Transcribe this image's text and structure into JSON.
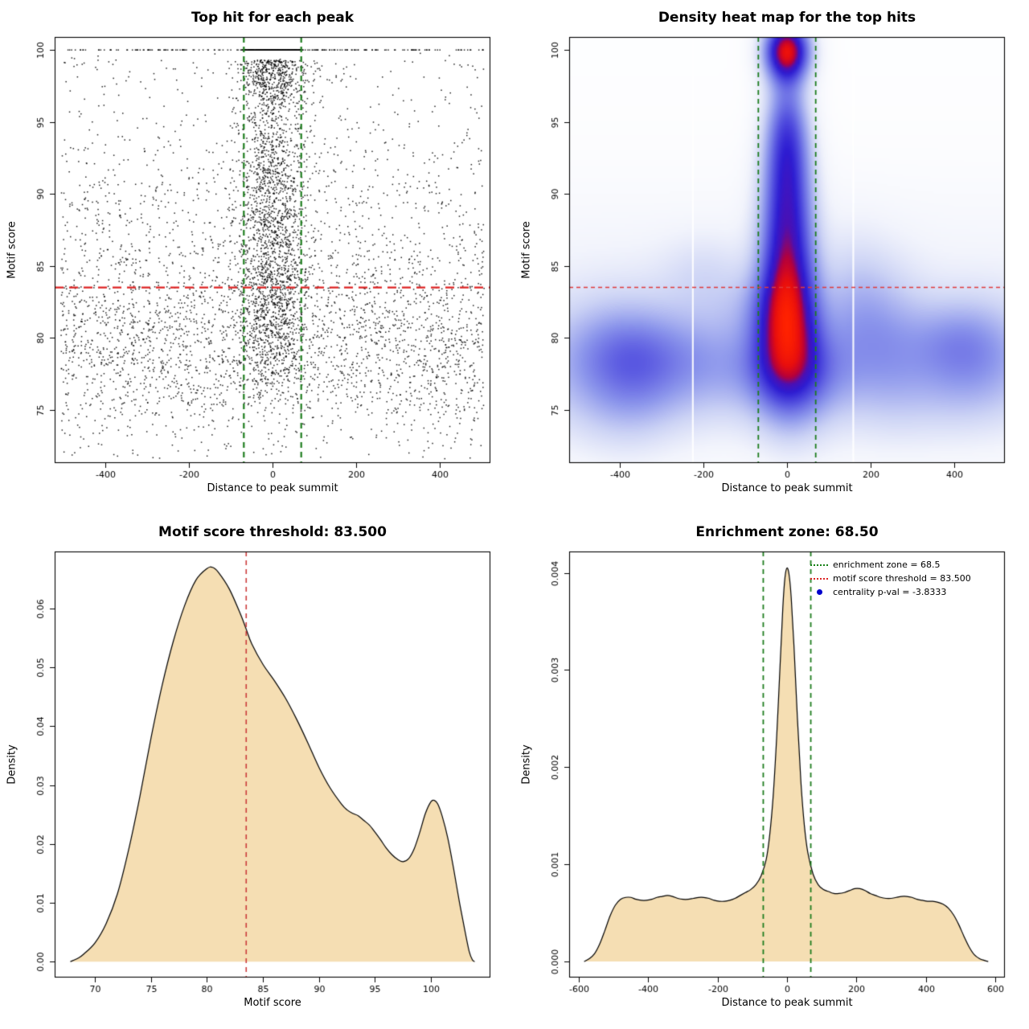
{
  "figure": {
    "background": "#ffffff"
  },
  "chart_data": [
    {
      "type": "scatter",
      "title": "Top hit for each peak",
      "xlabel": "Distance to peak summit",
      "ylabel": "Motif score",
      "xlim": [
        -520,
        520
      ],
      "ylim": [
        71.3,
        100.9
      ],
      "xticks": [
        -400,
        -200,
        0,
        200,
        400
      ],
      "yticks": [
        75,
        80,
        85,
        90,
        95,
        100
      ],
      "point_color": "#000000",
      "zone_lines": {
        "x": [
          -68.5,
          68.5
        ],
        "color": "#1e7d1e",
        "width": 2.2,
        "dash": [
          7,
          5
        ]
      },
      "threshold_line": {
        "y": 83.5,
        "color": "#dd2222",
        "width": 2.2,
        "dash": [
          11,
          7
        ]
      },
      "model": {
        "seed": 42,
        "y_min": 71.6,
        "y_max": 100,
        "background": {
          "n": 3600,
          "x_range": [
            -505,
            505
          ],
          "mix": [
            {
              "p": 0.55,
              "mu": 79,
              "sd": 3.2
            },
            {
              "p": 0.3,
              "mu": 84.5,
              "sd": 4.5
            },
            {
              "p": 0.12,
              "mu": 92,
              "sd": 4.0
            },
            {
              "p": 0.03,
              "near100": true,
              "sd": 1.5
            }
          ]
        },
        "central": {
          "n": 2600,
          "x_sd": 42,
          "mix": [
            {
              "p": 0.3,
              "mu": 82,
              "sd": 3.2
            },
            {
              "p": 0.3,
              "mu": 88,
              "sd": 3.5
            },
            {
              "p": 0.12,
              "mu": 93,
              "sd": 2.5
            },
            {
              "p": 0.28,
              "near100": true,
              "sd": 2.2
            }
          ]
        },
        "top_row_zone": {
          "n": 240,
          "x_range": [
            -68,
            68
          ]
        },
        "top_row_all": {
          "n": 110,
          "x_range": [
            -505,
            505
          ]
        }
      }
    },
    {
      "type": "heatmap",
      "title": "Density heat map for the top hits",
      "xlabel": "Distance to peak summit",
      "ylabel": "Motif score",
      "xlim": [
        -520,
        520
      ],
      "ylim": [
        71.3,
        100.9
      ],
      "xticks": [
        -400,
        -200,
        0,
        200,
        400
      ],
      "yticks": [
        75,
        80,
        85,
        90,
        95,
        100
      ],
      "zone_lines": {
        "x": [
          -68.5,
          68.5
        ],
        "color": "#1e7d1e",
        "width": 1.8,
        "dash": [
          6,
          5
        ]
      },
      "threshold_line": {
        "y": 83.5,
        "color": "#e03b3b",
        "width": 1.5,
        "dash": [
          5,
          4
        ]
      },
      "artifact_lines_x": [
        -225,
        158
      ],
      "colormap": [
        [
          0.0,
          "#ffffff"
        ],
        [
          0.06,
          "#f2f4fc"
        ],
        [
          0.16,
          "#ccd3f5"
        ],
        [
          0.3,
          "#8d97ec"
        ],
        [
          0.46,
          "#5553e0"
        ],
        [
          0.6,
          "#2d1cd2"
        ],
        [
          0.7,
          "#4a10b5"
        ],
        [
          0.78,
          "#b4003c"
        ],
        [
          0.88,
          "#e80e0e"
        ],
        [
          1.0,
          "#ff2200"
        ]
      ],
      "model": {
        "seed": 11,
        "column": {
          "sd_x_base": 36,
          "sd_x_slope": 0.75,
          "ref_y": 96,
          "components": [
            {
              "mu": 81.5,
              "sd": 3.8,
              "a": 1.2
            },
            {
              "mu": 89,
              "sd": 3.8,
              "a": 0.85
            },
            {
              "mu": 94.5,
              "sd": 3.0,
              "a": 0.6
            },
            {
              "mu": 100,
              "sd": 1.4,
              "a": 1.45
            }
          ]
        },
        "band": [
          {
            "mu": 77.5,
            "sd": 3.4,
            "a": 0.2
          },
          {
            "mu": 84,
            "sd": 5.0,
            "a": 0.08
          }
        ],
        "floor": 0.013,
        "blobs": {
          "n": 16,
          "y_mu": 78,
          "amp": [
            0.08,
            0.22
          ],
          "sx": [
            45,
            115
          ],
          "sy": [
            1.6,
            4.2
          ]
        }
      }
    },
    {
      "type": "area",
      "title": "Motif score threshold: 83.500",
      "xlabel": "Motif score",
      "ylabel": "Density",
      "xlim": [
        66.4,
        105.3
      ],
      "ylim": [
        -0.0027,
        0.0697
      ],
      "xticks": [
        70,
        75,
        80,
        85,
        90,
        95,
        100
      ],
      "yticks": [
        0,
        0.01,
        0.02,
        0.03,
        0.04,
        0.05,
        0.06
      ],
      "ytick_labels": [
        "0.00",
        "0.01",
        "0.02",
        "0.03",
        "0.04",
        "0.05",
        "0.06"
      ],
      "fill": "#f5deb3",
      "stroke": "#000000",
      "vlines": [
        {
          "x": 83.5,
          "color": "#cc3b3b",
          "width": 1.6,
          "dash": [
            6,
            5
          ]
        }
      ],
      "x": [
        67.8,
        68.5,
        69,
        70,
        71,
        72,
        73,
        74,
        75,
        76,
        77,
        78,
        79,
        80,
        80.5,
        81,
        82,
        83,
        83.5,
        84,
        85,
        86,
        87,
        88,
        89,
        90,
        91,
        92,
        92.5,
        93,
        93.5,
        94,
        94.5,
        95,
        95.5,
        96,
        96.5,
        97,
        97.5,
        98,
        98.5,
        99,
        99.5,
        100,
        100.3,
        100.6,
        101,
        101.5,
        102,
        102.5,
        103,
        103.4,
        103.7,
        103.9
      ],
      "y": [
        0.0,
        0.0006,
        0.0013,
        0.0032,
        0.0065,
        0.0115,
        0.019,
        0.028,
        0.038,
        0.047,
        0.0545,
        0.0605,
        0.0648,
        0.0668,
        0.067,
        0.0662,
        0.0633,
        0.059,
        0.0565,
        0.054,
        0.0505,
        0.0478,
        0.0448,
        0.0412,
        0.0372,
        0.033,
        0.0295,
        0.0268,
        0.0258,
        0.0252,
        0.0248,
        0.024,
        0.0232,
        0.022,
        0.0207,
        0.0193,
        0.0182,
        0.0174,
        0.017,
        0.0175,
        0.0192,
        0.022,
        0.0252,
        0.0272,
        0.0274,
        0.0268,
        0.0247,
        0.021,
        0.016,
        0.0105,
        0.0055,
        0.0018,
        0.0003,
        0.0
      ]
    },
    {
      "type": "area",
      "title": "Enrichment zone: 68.50",
      "xlabel": "Distance to peak summit",
      "ylabel": "Density",
      "xlim": [
        -628,
        628
      ],
      "ylim": [
        -0.000165,
        0.00422
      ],
      "xticks": [
        -600,
        -400,
        -200,
        0,
        200,
        400,
        600
      ],
      "yticks": [
        0,
        0.001,
        0.002,
        0.003,
        0.004
      ],
      "ytick_labels": [
        "0.000",
        "0.001",
        "0.002",
        "0.003",
        "0.004"
      ],
      "fill": "#f5deb3",
      "stroke": "#000000",
      "vlines": [
        {
          "x": -68.5,
          "color": "#1e7d1e",
          "width": 1.8,
          "dash": [
            6,
            5
          ]
        },
        {
          "x": 68.5,
          "color": "#1e7d1e",
          "width": 1.8,
          "dash": [
            6,
            5
          ]
        }
      ],
      "legend": [
        {
          "glyph": "dotted-line",
          "color": "#128012",
          "label": "enrichment zone = 68.5"
        },
        {
          "glyph": "dotted-line",
          "color": "#dd2222",
          "label": "motif score threshold = 83.500"
        },
        {
          "glyph": "dot",
          "color": "#0000cd",
          "label": "centrality p-val = -3.8333"
        }
      ],
      "x": [
        -585,
        -570,
        -555,
        -540,
        -525,
        -510,
        -495,
        -480,
        -465,
        -450,
        -435,
        -420,
        -405,
        -390,
        -375,
        -360,
        -345,
        -330,
        -315,
        -300,
        -285,
        -270,
        -255,
        -240,
        -225,
        -210,
        -195,
        -180,
        -165,
        -150,
        -135,
        -120,
        -105,
        -90,
        -75,
        -60,
        -50,
        -40,
        -30,
        -20,
        -12,
        -6,
        0,
        6,
        12,
        20,
        30,
        40,
        50,
        60,
        75,
        90,
        105,
        120,
        135,
        150,
        165,
        180,
        195,
        210,
        225,
        240,
        255,
        270,
        285,
        300,
        315,
        330,
        345,
        360,
        375,
        390,
        405,
        420,
        435,
        450,
        465,
        480,
        495,
        510,
        525,
        540,
        555,
        570,
        580
      ],
      "y": [
        0.0,
        3e-05,
        8e-05,
        0.00018,
        0.00032,
        0.00047,
        0.00058,
        0.00064,
        0.00066,
        0.00066,
        0.00064,
        0.00063,
        0.00063,
        0.00064,
        0.00066,
        0.00067,
        0.00068,
        0.00067,
        0.00065,
        0.00064,
        0.00064,
        0.00065,
        0.00066,
        0.00066,
        0.00065,
        0.00063,
        0.00062,
        0.00062,
        0.00063,
        0.00065,
        0.00068,
        0.00071,
        0.00074,
        0.00079,
        0.00088,
        0.00105,
        0.0013,
        0.0017,
        0.0023,
        0.00305,
        0.00365,
        0.00395,
        0.00405,
        0.00398,
        0.00375,
        0.00325,
        0.0025,
        0.00185,
        0.0014,
        0.00112,
        0.0009,
        0.00079,
        0.00074,
        0.00072,
        0.0007,
        0.0007,
        0.00071,
        0.00073,
        0.00075,
        0.00075,
        0.00073,
        0.0007,
        0.00068,
        0.00066,
        0.00065,
        0.00065,
        0.00066,
        0.00067,
        0.00067,
        0.00066,
        0.00064,
        0.00063,
        0.00062,
        0.00062,
        0.00061,
        0.00059,
        0.00055,
        0.00048,
        0.00038,
        0.00026,
        0.00015,
        7e-05,
        3e-05,
        1e-05,
        0.0
      ]
    }
  ]
}
